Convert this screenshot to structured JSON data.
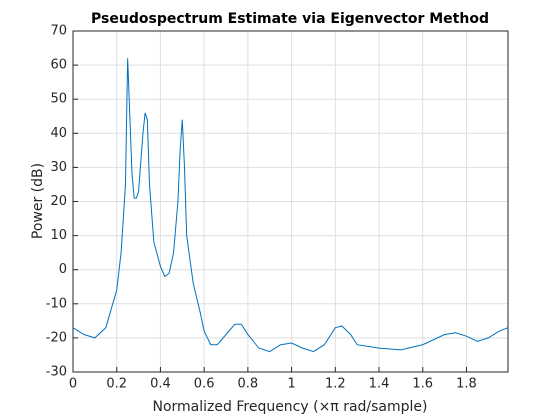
{
  "chart_data": {
    "type": "line",
    "title": "Pseudospectrum Estimate via Eigenvector Method",
    "xlabel": "Normalized Frequency  (×π rad/sample)",
    "ylabel": "Power (dB)",
    "x": [
      0,
      0.05,
      0.1,
      0.15,
      0.2,
      0.22,
      0.24,
      0.25,
      0.26,
      0.27,
      0.28,
      0.29,
      0.3,
      0.32,
      0.33,
      0.34,
      0.35,
      0.37,
      0.4,
      0.42,
      0.44,
      0.46,
      0.48,
      0.49,
      0.5,
      0.51,
      0.52,
      0.55,
      0.58,
      0.6,
      0.63,
      0.66,
      0.7,
      0.74,
      0.77,
      0.8,
      0.85,
      0.9,
      0.95,
      1.0,
      1.05,
      1.1,
      1.15,
      1.2,
      1.23,
      1.27,
      1.3,
      1.4,
      1.5,
      1.6,
      1.7,
      1.75,
      1.8,
      1.85,
      1.9,
      1.95,
      1.99
    ],
    "series": [
      {
        "name": "Pseudospectrum",
        "color": "#0072bd",
        "values": [
          -17,
          -19,
          -20,
          -17,
          -6,
          5,
          25,
          62,
          45,
          28,
          21,
          21,
          23,
          40,
          46,
          44,
          25,
          8,
          1,
          -2,
          -1,
          5,
          20,
          35,
          44,
          30,
          10,
          -4,
          -12,
          -18,
          -22,
          -22,
          -19,
          -16,
          -16,
          -19,
          -23,
          -24,
          -22,
          -21.5,
          -23,
          -24,
          -22,
          -17,
          -16.5,
          -19,
          -22,
          -23,
          -23.5,
          -22,
          -19,
          -18.5,
          -19.5,
          -21,
          -20,
          -18,
          -17
        ]
      }
    ],
    "xlim": [
      0,
      1.99
    ],
    "xticks": [
      0,
      0.2,
      0.4,
      0.6,
      0.8,
      1,
      1.2,
      1.4,
      1.6,
      1.8
    ],
    "ylim": [
      -30,
      70
    ],
    "yticks": [
      -30,
      -20,
      -10,
      0,
      10,
      20,
      30,
      40,
      50,
      60,
      70
    ],
    "grid": true
  }
}
